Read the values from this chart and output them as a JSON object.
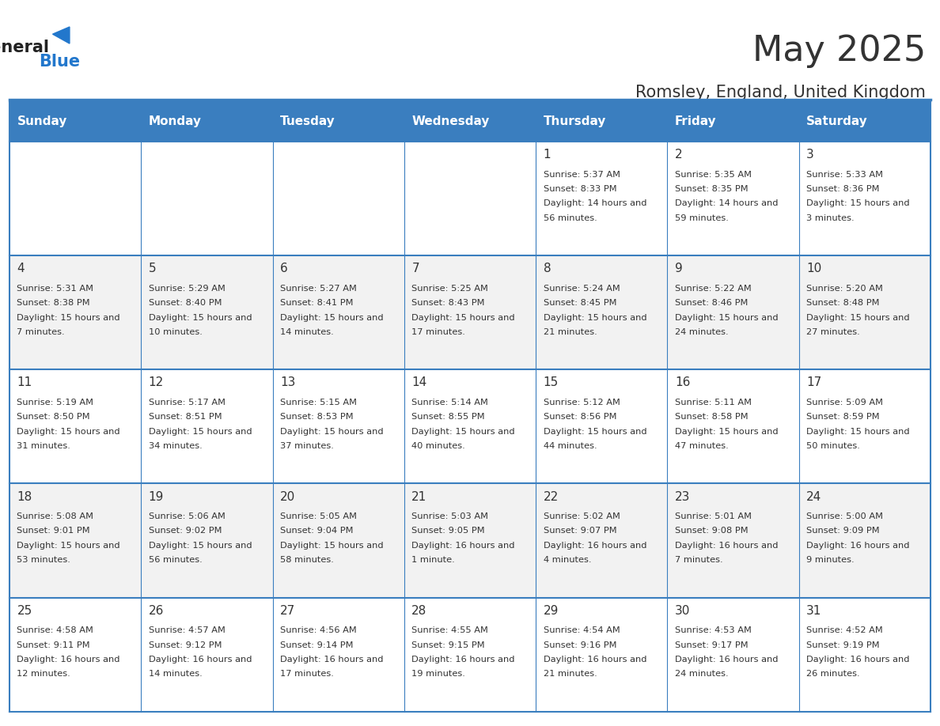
{
  "title": "May 2025",
  "subtitle": "Romsley, England, United Kingdom",
  "header_bg": "#3a7ebf",
  "header_text": "#ffffff",
  "row_bg_odd": "#f2f2f2",
  "row_bg_even": "#ffffff",
  "border_color": "#3a7ebf",
  "text_color": "#333333",
  "days_of_week": [
    "Sunday",
    "Monday",
    "Tuesday",
    "Wednesday",
    "Thursday",
    "Friday",
    "Saturday"
  ],
  "calendar": [
    [
      null,
      null,
      null,
      null,
      {
        "day": 1,
        "sunrise": "5:37 AM",
        "sunset": "8:33 PM",
        "daylight": "14 hours and 56 minutes"
      },
      {
        "day": 2,
        "sunrise": "5:35 AM",
        "sunset": "8:35 PM",
        "daylight": "14 hours and 59 minutes"
      },
      {
        "day": 3,
        "sunrise": "5:33 AM",
        "sunset": "8:36 PM",
        "daylight": "15 hours and 3 minutes"
      }
    ],
    [
      {
        "day": 4,
        "sunrise": "5:31 AM",
        "sunset": "8:38 PM",
        "daylight": "15 hours and 7 minutes"
      },
      {
        "day": 5,
        "sunrise": "5:29 AM",
        "sunset": "8:40 PM",
        "daylight": "15 hours and 10 minutes"
      },
      {
        "day": 6,
        "sunrise": "5:27 AM",
        "sunset": "8:41 PM",
        "daylight": "15 hours and 14 minutes"
      },
      {
        "day": 7,
        "sunrise": "5:25 AM",
        "sunset": "8:43 PM",
        "daylight": "15 hours and 17 minutes"
      },
      {
        "day": 8,
        "sunrise": "5:24 AM",
        "sunset": "8:45 PM",
        "daylight": "15 hours and 21 minutes"
      },
      {
        "day": 9,
        "sunrise": "5:22 AM",
        "sunset": "8:46 PM",
        "daylight": "15 hours and 24 minutes"
      },
      {
        "day": 10,
        "sunrise": "5:20 AM",
        "sunset": "8:48 PM",
        "daylight": "15 hours and 27 minutes"
      }
    ],
    [
      {
        "day": 11,
        "sunrise": "5:19 AM",
        "sunset": "8:50 PM",
        "daylight": "15 hours and 31 minutes"
      },
      {
        "day": 12,
        "sunrise": "5:17 AM",
        "sunset": "8:51 PM",
        "daylight": "15 hours and 34 minutes"
      },
      {
        "day": 13,
        "sunrise": "5:15 AM",
        "sunset": "8:53 PM",
        "daylight": "15 hours and 37 minutes"
      },
      {
        "day": 14,
        "sunrise": "5:14 AM",
        "sunset": "8:55 PM",
        "daylight": "15 hours and 40 minutes"
      },
      {
        "day": 15,
        "sunrise": "5:12 AM",
        "sunset": "8:56 PM",
        "daylight": "15 hours and 44 minutes"
      },
      {
        "day": 16,
        "sunrise": "5:11 AM",
        "sunset": "8:58 PM",
        "daylight": "15 hours and 47 minutes"
      },
      {
        "day": 17,
        "sunrise": "5:09 AM",
        "sunset": "8:59 PM",
        "daylight": "15 hours and 50 minutes"
      }
    ],
    [
      {
        "day": 18,
        "sunrise": "5:08 AM",
        "sunset": "9:01 PM",
        "daylight": "15 hours and 53 minutes"
      },
      {
        "day": 19,
        "sunrise": "5:06 AM",
        "sunset": "9:02 PM",
        "daylight": "15 hours and 56 minutes"
      },
      {
        "day": 20,
        "sunrise": "5:05 AM",
        "sunset": "9:04 PM",
        "daylight": "15 hours and 58 minutes"
      },
      {
        "day": 21,
        "sunrise": "5:03 AM",
        "sunset": "9:05 PM",
        "daylight": "16 hours and 1 minute"
      },
      {
        "day": 22,
        "sunrise": "5:02 AM",
        "sunset": "9:07 PM",
        "daylight": "16 hours and 4 minutes"
      },
      {
        "day": 23,
        "sunrise": "5:01 AM",
        "sunset": "9:08 PM",
        "daylight": "16 hours and 7 minutes"
      },
      {
        "day": 24,
        "sunrise": "5:00 AM",
        "sunset": "9:09 PM",
        "daylight": "16 hours and 9 minutes"
      }
    ],
    [
      {
        "day": 25,
        "sunrise": "4:58 AM",
        "sunset": "9:11 PM",
        "daylight": "16 hours and 12 minutes"
      },
      {
        "day": 26,
        "sunrise": "4:57 AM",
        "sunset": "9:12 PM",
        "daylight": "16 hours and 14 minutes"
      },
      {
        "day": 27,
        "sunrise": "4:56 AM",
        "sunset": "9:14 PM",
        "daylight": "16 hours and 17 minutes"
      },
      {
        "day": 28,
        "sunrise": "4:55 AM",
        "sunset": "9:15 PM",
        "daylight": "16 hours and 19 minutes"
      },
      {
        "day": 29,
        "sunrise": "4:54 AM",
        "sunset": "9:16 PM",
        "daylight": "16 hours and 21 minutes"
      },
      {
        "day": 30,
        "sunrise": "4:53 AM",
        "sunset": "9:17 PM",
        "daylight": "16 hours and 24 minutes"
      },
      {
        "day": 31,
        "sunrise": "4:52 AM",
        "sunset": "9:19 PM",
        "daylight": "16 hours and 26 minutes"
      }
    ]
  ]
}
